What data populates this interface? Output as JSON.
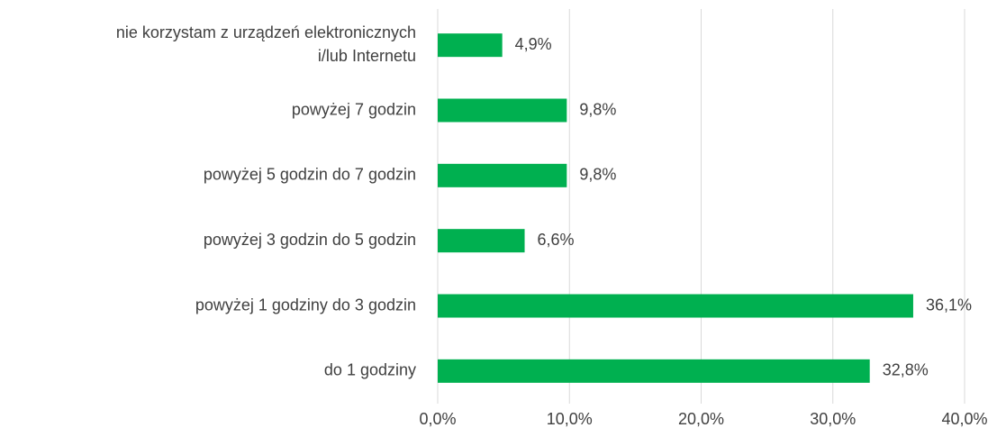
{
  "chart_data": {
    "type": "bar",
    "orientation": "horizontal",
    "categories": [
      "nie korzystam z urządzeń elektronicznych\ni/lub Internetu",
      "powyżej 7 godzin",
      "powyżej 5 godzin do 7 godzin",
      "powyżej 3 godzin do 5 godzin",
      "powyżej 1 godziny do 3 godzin",
      "do 1 godziny"
    ],
    "values": [
      4.9,
      9.8,
      9.8,
      6.6,
      36.1,
      32.8
    ],
    "value_labels": [
      "4,9%",
      "9,8%",
      "9,8%",
      "6,6%",
      "36,1%",
      "32,8%"
    ],
    "color": "#00b050",
    "xlim": [
      0,
      40
    ],
    "xticks": [
      {
        "value": 0,
        "label": "0,0%"
      },
      {
        "value": 10,
        "label": "10,0%"
      },
      {
        "value": 20,
        "label": "20,0%"
      },
      {
        "value": 30,
        "label": "30,0%"
      },
      {
        "value": 40,
        "label": "40,0%"
      }
    ],
    "grid": true
  }
}
